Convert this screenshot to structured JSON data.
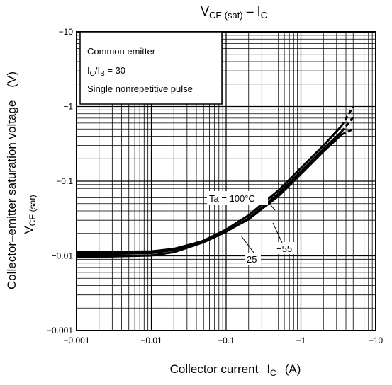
{
  "chart_data": {
    "type": "line",
    "title": {
      "main": "V",
      "main_sub": "CE (sat)",
      "sep": " – I",
      "sep_sub": "C"
    },
    "xlabel": {
      "text": "Collector current",
      "symbol": "I",
      "symbol_sub": "C",
      "unit": "(A)"
    },
    "ylabel": {
      "line1": "Collector–emitter saturation voltage",
      "unit": "(V)",
      "line2": "V",
      "line2_sub": "CE (sat)"
    },
    "x_scale": "log",
    "y_scale": "log",
    "xlim": [
      0.001,
      10
    ],
    "ylim": [
      0.001,
      10
    ],
    "x_tick_labels": [
      "−0.001",
      "−0.01",
      "−0.1",
      "−1",
      "−10"
    ],
    "y_tick_labels": [
      "−0.001",
      "−0.01",
      "−0.1",
      "−1",
      "−10"
    ],
    "grid": true,
    "conditions": {
      "line1": "Common emitter",
      "ratio_symbol": "I",
      "ratio_num_sub": "C",
      "ratio_sep": "/I",
      "ratio_den_sub": "B",
      "ratio_value": " = 30",
      "line3": "Single nonrepetitive pulse"
    },
    "curve_labels": [
      "Ta = 100°C",
      "25",
      "−55"
    ],
    "series": [
      {
        "label_index": 0,
        "x": [
          0.001,
          0.003,
          0.01,
          0.02,
          0.05,
          0.1,
          0.2,
          0.5,
          1,
          2,
          3.5
        ],
        "y": [
          0.0097,
          0.0098,
          0.0101,
          0.0112,
          0.0152,
          0.021,
          0.032,
          0.068,
          0.135,
          0.27,
          0.46
        ],
        "dashed_tail": {
          "x": [
            3.5,
            5
          ],
          "y": [
            0.46,
            0.72
          ]
        }
      },
      {
        "label_index": 1,
        "x": [
          0.001,
          0.003,
          0.01,
          0.02,
          0.05,
          0.1,
          0.2,
          0.5,
          1,
          2,
          3.5
        ],
        "y": [
          0.0105,
          0.0106,
          0.0109,
          0.012,
          0.016,
          0.0225,
          0.035,
          0.075,
          0.15,
          0.3,
          0.55
        ],
        "dashed_tail": {
          "x": [
            3.5,
            5
          ],
          "y": [
            0.55,
            1.0
          ]
        }
      },
      {
        "label_index": 2,
        "x": [
          0.001,
          0.003,
          0.01,
          0.02,
          0.05,
          0.1,
          0.2,
          0.5,
          1,
          2,
          3.5
        ],
        "y": [
          0.0112,
          0.0113,
          0.0115,
          0.0124,
          0.0158,
          0.0213,
          0.031,
          0.063,
          0.125,
          0.25,
          0.42
        ],
        "dashed_tail": {
          "x": [
            3.5,
            5
          ],
          "y": [
            0.42,
            0.5
          ]
        }
      }
    ]
  }
}
